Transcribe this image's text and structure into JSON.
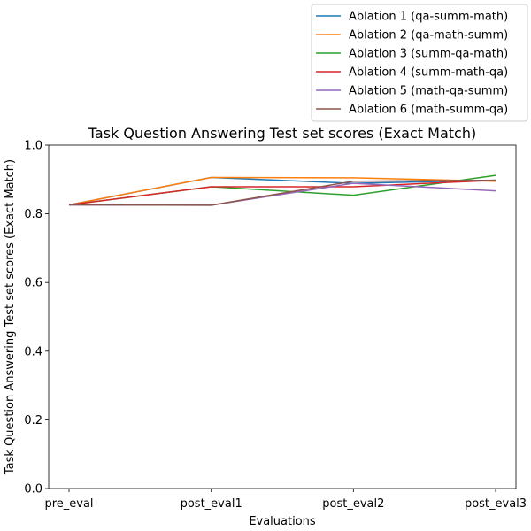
{
  "chart_data": {
    "type": "line",
    "title": "Task Question Answering Test set scores (Exact Match)",
    "xlabel": "Evaluations",
    "ylabel": "Task Question Answering Test set scores (Exact Match)",
    "categories": [
      "pre_eval",
      "post_eval1",
      "post_eval2",
      "post_eval3"
    ],
    "ylim": [
      0.0,
      1.0
    ],
    "yticks": [
      "0.0",
      "0.2",
      "0.4",
      "0.6",
      "0.8",
      "1.0"
    ],
    "grid": false,
    "legend_position": "above-top-right",
    "series": [
      {
        "name": "Ablation 1 (qa-summ-math)",
        "color": "#1f77b4",
        "values": [
          0.826,
          0.906,
          0.889,
          0.898
        ]
      },
      {
        "name": "Ablation 2 (qa-math-summ)",
        "color": "#ff7f0e",
        "values": [
          0.826,
          0.906,
          0.905,
          0.895
        ]
      },
      {
        "name": "Ablation 3 (summ-qa-math)",
        "color": "#2ca02c",
        "values": [
          0.826,
          0.879,
          0.854,
          0.912
        ]
      },
      {
        "name": "Ablation 4 (summ-math-qa)",
        "color": "#d62728",
        "values": [
          0.826,
          0.879,
          0.879,
          0.898
        ]
      },
      {
        "name": "Ablation 5 (math-qa-summ)",
        "color": "#9467bd",
        "values": [
          0.826,
          0.825,
          0.889,
          0.867
        ]
      },
      {
        "name": "Ablation 6 (math-summ-qa)",
        "color": "#8c564b",
        "values": [
          0.826,
          0.825,
          0.895,
          0.898
        ]
      }
    ]
  }
}
